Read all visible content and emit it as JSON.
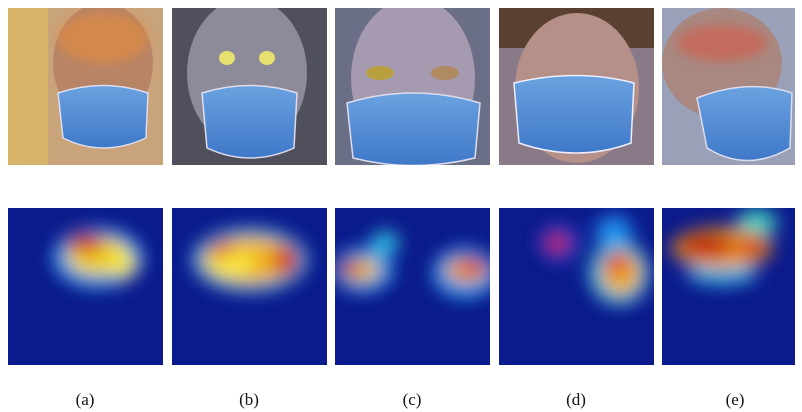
{
  "captions": [
    "(a)",
    "(b)",
    "(c)",
    "(d)",
    "(e)"
  ]
}
